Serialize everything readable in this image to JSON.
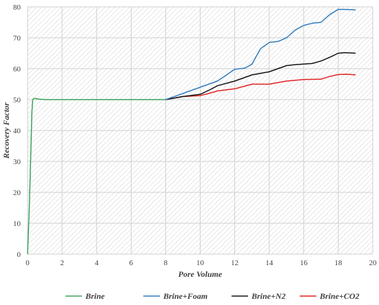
{
  "chart_data": {
    "type": "line",
    "xlabel": "Pore Volume",
    "ylabel": "Recovery Factor",
    "xlim": [
      0,
      20
    ],
    "ylim": [
      0,
      80
    ],
    "xticks": [
      0,
      2,
      4,
      6,
      8,
      10,
      12,
      14,
      16,
      18,
      20
    ],
    "yticks": [
      0,
      10,
      20,
      30,
      40,
      50,
      60,
      70,
      80
    ],
    "grid": true,
    "legend_position": "bottom",
    "series": [
      {
        "name": "Brine",
        "color": "#3aa35a",
        "x": [
          0,
          0.1,
          0.2,
          0.25,
          0.3,
          0.35,
          0.45,
          0.6,
          1,
          2,
          4,
          6,
          8
        ],
        "y": [
          0,
          15,
          35,
          46,
          50,
          50.3,
          50.4,
          50.2,
          50,
          50,
          50,
          50,
          50
        ]
      },
      {
        "name": "Brine+Foam",
        "color": "#2f7bbd",
        "x": [
          8,
          9,
          10,
          11,
          12,
          12.6,
          13,
          13.5,
          14,
          14.5,
          15,
          15.5,
          16,
          16.5,
          17,
          17.5,
          18,
          18.4,
          19
        ],
        "y": [
          50,
          52,
          54,
          56,
          59.8,
          60.2,
          61.5,
          66.5,
          68.5,
          68.8,
          70,
          72.5,
          74,
          74.7,
          75,
          77.5,
          79.2,
          79.2,
          79
        ]
      },
      {
        "name": "Brine+N2",
        "color": "#111111",
        "x": [
          8,
          9,
          10,
          10.5,
          11,
          12,
          13,
          14,
          14.5,
          15,
          15.5,
          16,
          16.5,
          17,
          17.5,
          18,
          18.4,
          19
        ],
        "y": [
          50,
          51,
          51.7,
          53,
          54.5,
          56,
          58,
          59,
          60,
          61,
          61.3,
          61.5,
          61.7,
          62.5,
          63.7,
          65,
          65.2,
          65
        ]
      },
      {
        "name": "Brine+CO2",
        "color": "#e02020",
        "x": [
          8,
          9,
          10,
          10.5,
          11,
          12,
          13,
          14,
          14.5,
          15,
          16,
          17,
          17.5,
          18,
          18.5,
          19
        ],
        "y": [
          50,
          51,
          51.3,
          52,
          52.8,
          53.5,
          55,
          55,
          55.5,
          56,
          56.5,
          56.6,
          57.5,
          58.1,
          58.2,
          58
        ]
      }
    ]
  }
}
